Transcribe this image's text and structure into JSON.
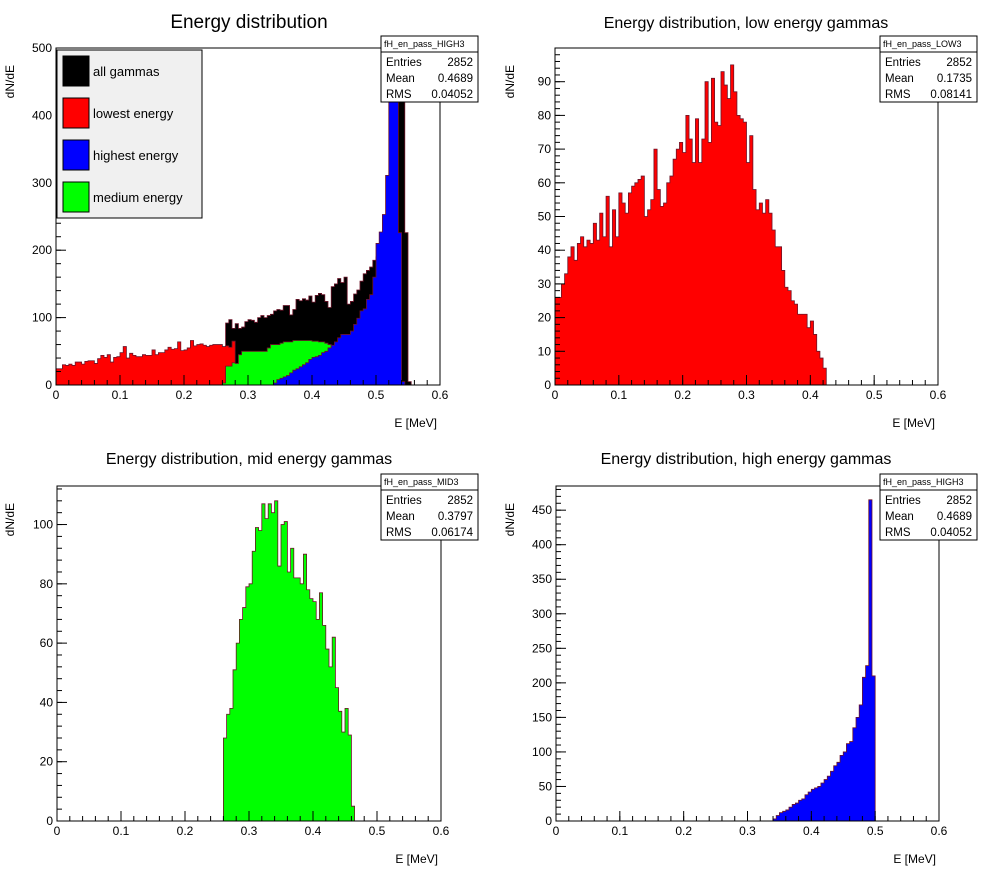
{
  "chart_data": [
    {
      "type": "bar",
      "title": "Energy distribution",
      "xlabel": "E [MeV]",
      "ylabel": "dN/dE",
      "xlim": [
        0,
        0.6
      ],
      "ylim": [
        0,
        500
      ],
      "xticks": [
        "0",
        "0.1",
        "0.2",
        "0.3",
        "0.4",
        "0.5",
        "0.6"
      ],
      "yticks": [
        "0",
        "100",
        "200",
        "300",
        "400",
        "500"
      ],
      "stack_order_back_to_front": [
        "all gammas",
        "lowest energy",
        "medium energy",
        "highest energy"
      ],
      "stats": {
        "name": "fH_en_pass_HIGH3",
        "entries": "2852",
        "mean": "0.4689",
        "rms": "0.04052"
      },
      "legend": {
        "placement": "top-left",
        "entries": [
          {
            "label": "all gammas",
            "color": "#000000"
          },
          {
            "label": "lowest energy",
            "color": "#ff0000"
          },
          {
            "label": "highest energy",
            "color": "#0000ff"
          },
          {
            "label": "medium energy",
            "color": "#00ff00"
          }
        ]
      },
      "series": [
        {
          "color": "#ff0000",
          "x0": 0.0,
          "width": 0.005,
          "values": [
            24,
            24,
            30,
            29,
            31,
            29,
            34,
            34,
            31,
            35,
            36,
            36,
            32,
            39,
            44,
            41,
            45,
            34,
            41,
            42,
            48,
            57,
            40,
            47,
            44,
            42,
            42,
            45,
            44,
            44,
            52,
            45,
            48,
            48,
            52,
            56,
            53,
            54,
            64,
            51,
            52,
            55,
            66,
            58,
            60,
            61,
            59,
            57,
            59,
            60,
            60,
            60,
            57,
            58,
            56,
            65
          ]
        },
        {
          "color": "#00ff00",
          "x0": 0.26,
          "width": 0.005,
          "values": [
            3,
            28,
            28,
            33,
            32,
            45,
            50,
            50,
            50,
            50,
            50,
            50,
            50,
            50,
            55,
            60,
            60,
            60,
            62,
            64,
            64,
            64,
            66,
            66,
            66,
            66,
            66,
            66,
            65,
            65,
            64,
            64,
            62,
            60,
            56,
            52,
            47,
            38,
            30,
            20,
            14,
            8,
            4,
            2,
            1
          ]
        },
        {
          "color": "#0000ff",
          "x0": 0.34,
          "width": 0.005,
          "values": [
            3,
            8,
            10,
            12,
            14,
            18,
            22,
            24,
            27,
            30,
            33,
            38,
            41,
            42,
            44,
            48,
            50,
            55,
            59,
            64,
            70,
            75,
            75,
            75,
            80,
            90,
            99,
            110,
            113,
            127,
            134,
            160,
            210,
            227,
            253,
            311,
            500,
            465,
            470,
            226,
            5
          ]
        },
        {
          "color": "#000000",
          "x0": 0.26,
          "width": 0.005,
          "values": [
            3,
            92,
            97,
            84,
            91,
            84,
            86,
            94,
            97,
            96,
            93,
            100,
            103,
            100,
            103,
            105,
            110,
            112,
            111,
            118,
            118,
            104,
            112,
            127,
            125,
            128,
            126,
            132,
            123,
            133,
            136,
            134,
            124,
            115,
            146,
            150,
            158,
            152,
            160,
            120,
            124,
            135,
            141,
            154,
            165,
            170,
            175,
            185,
            190,
            210,
            229,
            232,
            250,
            300,
            500,
            465,
            470,
            226,
            5
          ]
        }
      ]
    },
    {
      "type": "bar",
      "title": "Energy distribution, low energy gammas",
      "xlabel": "E [MeV]",
      "ylabel": "dN/dE",
      "xlim": [
        0,
        0.6
      ],
      "ylim": [
        0,
        100
      ],
      "xticks": [
        "0",
        "0.1",
        "0.2",
        "0.3",
        "0.4",
        "0.5",
        "0.6"
      ],
      "yticks": [
        "0",
        "10",
        "20",
        "30",
        "40",
        "50",
        "60",
        "70",
        "80",
        "90"
      ],
      "stats": {
        "name": "fH_en_pass_LOW3",
        "entries": "2852",
        "mean": "0.1735",
        "rms": "0.08141"
      },
      "series": [
        {
          "color": "#ff0000",
          "x0": 0.0,
          "width": 0.005,
          "values": [
            26,
            26,
            30,
            33,
            38,
            41,
            37,
            42,
            44,
            41,
            43,
            42,
            48,
            43,
            51,
            44,
            56,
            41,
            52,
            44,
            57,
            54,
            51,
            57,
            59,
            60,
            61,
            62,
            50,
            52,
            55,
            70,
            58,
            53,
            54,
            60,
            62,
            67,
            70,
            72,
            69,
            80,
            73,
            66,
            79,
            66,
            73,
            90,
            72,
            91,
            78,
            77,
            93,
            89,
            85,
            95,
            87,
            80,
            79,
            78,
            66,
            74,
            58,
            52,
            54,
            51,
            55,
            51,
            46,
            41,
            41,
            34,
            29,
            28,
            25,
            24,
            21,
            21,
            21,
            17,
            19,
            15,
            10,
            8,
            5
          ]
        }
      ]
    },
    {
      "type": "bar",
      "title": "Energy distribution, mid energy gammas",
      "xlabel": "E [MeV]",
      "ylabel": "dN/dE",
      "xlim": [
        0,
        0.6
      ],
      "ylim": [
        0,
        113
      ],
      "xticks": [
        "0",
        "0.1",
        "0.2",
        "0.3",
        "0.4",
        "0.5",
        "0.6"
      ],
      "yticks": [
        "0",
        "20",
        "40",
        "60",
        "80",
        "100"
      ],
      "stats": {
        "name": "fH_en_pass_MID3",
        "entries": "2852",
        "mean": "0.3797",
        "rms": "0.06174"
      },
      "series": [
        {
          "color": "#00ff00",
          "x0": 0.26,
          "width": 0.005,
          "values": [
            28,
            36,
            38,
            51,
            60,
            68,
            72,
            79,
            80,
            91,
            99,
            98,
            107,
            102,
            107,
            104,
            108,
            86,
            100,
            101,
            84,
            92,
            82,
            82,
            80,
            90,
            78,
            75,
            74,
            68,
            77,
            66,
            58,
            52,
            62,
            45,
            37,
            30,
            38,
            29,
            5
          ]
        }
      ]
    },
    {
      "type": "bar",
      "title": "Energy distribution, high energy gammas",
      "xlabel": "E [MeV]",
      "ylabel": "dN/dE",
      "xlim": [
        0,
        0.6
      ],
      "ylim": [
        0,
        485
      ],
      "xticks": [
        "0",
        "0.1",
        "0.2",
        "0.3",
        "0.4",
        "0.5",
        "0.6"
      ],
      "yticks": [
        "0",
        "50",
        "100",
        "150",
        "200",
        "250",
        "300",
        "350",
        "400",
        "450"
      ],
      "stats": {
        "name": "fH_en_pass_HIGH3",
        "entries": "2852",
        "mean": "0.4689",
        "rms": "0.04052"
      },
      "series": [
        {
          "color": "#0000ff",
          "x0": 0.34,
          "width": 0.005,
          "values": [
            3,
            8,
            12,
            14,
            16,
            20,
            24,
            26,
            30,
            32,
            38,
            42,
            46,
            48,
            50,
            55,
            60,
            65,
            72,
            80,
            85,
            95,
            100,
            112,
            115,
            135,
            150,
            168,
            208,
            225,
            465,
            210
          ]
        }
      ]
    }
  ]
}
